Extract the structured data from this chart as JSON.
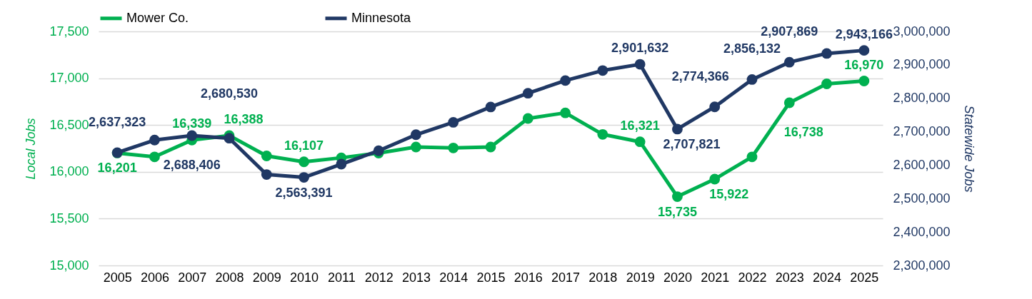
{
  "chart_data": {
    "type": "line",
    "ylabel": "Local Jobs",
    "y2label": "Statewide Jobs",
    "categories": [
      "2005",
      "2006",
      "2007",
      "2008",
      "2009",
      "2010",
      "2011",
      "2012",
      "2013",
      "2014",
      "2015",
      "2016",
      "2017",
      "2018",
      "2019",
      "2020",
      "2021",
      "2022",
      "2023",
      "2024",
      "2025"
    ],
    "series": [
      {
        "name": "Mower Co.",
        "color": "#00b050",
        "values": [
          16201,
          16160,
          16339,
          16388,
          16170,
          16107,
          16150,
          16200,
          16265,
          16255,
          16265,
          16570,
          16630,
          16400,
          16321,
          15735,
          15922,
          16160,
          16738,
          16940,
          16970
        ],
        "value_labels": [
          "16,201",
          null,
          "16,339",
          "16,388",
          null,
          "16,107",
          null,
          null,
          null,
          null,
          null,
          null,
          null,
          null,
          "16,321",
          "15,735",
          "15,922",
          null,
          "16,738",
          null,
          "16,970"
        ]
      },
      {
        "name": "Minnesota",
        "color": "#203864",
        "axis": "y2",
        "values": [
          2637323,
          2675000,
          2688406,
          2680530,
          2572000,
          2563391,
          2603000,
          2643000,
          2691000,
          2728000,
          2774000,
          2815000,
          2853000,
          2883000,
          2901632,
          2707821,
          2774366,
          2856132,
          2907869,
          2934000,
          2943166
        ],
        "value_labels": [
          "2,637,323",
          null,
          "2,688,406",
          "2,680,530",
          null,
          "2,563,391",
          null,
          null,
          null,
          null,
          null,
          null,
          null,
          null,
          "2,901,632",
          "2,707,821",
          "2,774,366",
          "2,856,132",
          "2,907,869",
          null,
          "2,943,166"
        ]
      }
    ],
    "ylim": [
      15000,
      17500
    ],
    "yticks": [
      {
        "value": 15000,
        "label": "15,000"
      },
      {
        "value": 15500,
        "label": "15,500"
      },
      {
        "value": 16000,
        "label": "16,000"
      },
      {
        "value": 16500,
        "label": "16,500"
      },
      {
        "value": 17000,
        "label": "17,000"
      },
      {
        "value": 17500,
        "label": "17,500"
      }
    ],
    "y2lim": [
      2300000,
      3000000
    ],
    "y2ticks": [
      {
        "value": 2300000,
        "label": "2,300,000"
      },
      {
        "value": 2400000,
        "label": "2,400,000"
      },
      {
        "value": 2500000,
        "label": "2,500,000"
      },
      {
        "value": 2600000,
        "label": "2,600,000"
      },
      {
        "value": 2700000,
        "label": "2,700,000"
      },
      {
        "value": 2800000,
        "label": "2,800,000"
      },
      {
        "value": 2900000,
        "label": "2,900,000"
      },
      {
        "value": 3000000,
        "label": "3,000,000"
      }
    ],
    "grid": "y",
    "legend": "top",
    "marker": "circle",
    "line_style": "solid"
  }
}
